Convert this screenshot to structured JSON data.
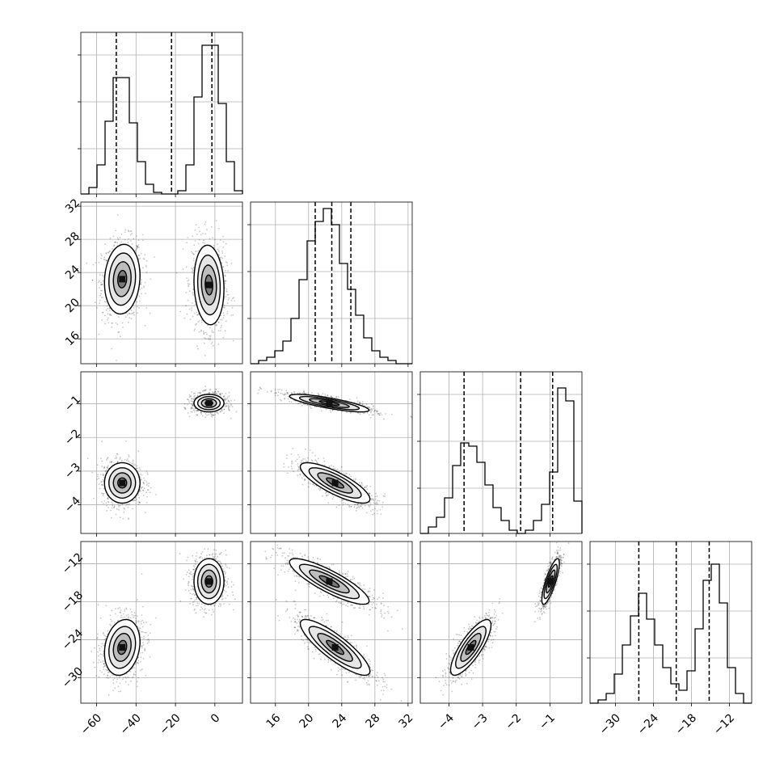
{
  "chart_data": {
    "type": "corner",
    "parameters": [
      {
        "range": [
          -68,
          14
        ],
        "ticks": [
          -60,
          -40,
          -20,
          0
        ],
        "tick_labels": [
          "−60",
          "−40",
          "−20",
          "0"
        ],
        "quantiles": [
          -50,
          -22,
          -1.5
        ]
      },
      {
        "range": [
          13,
          32.5
        ],
        "ticks": [
          16,
          20,
          24,
          28,
          32
        ],
        "tick_labels": [
          "16",
          "20",
          "24",
          "28",
          "32"
        ],
        "quantiles": [
          20.8,
          22.8,
          25.1
        ]
      },
      {
        "range": [
          -4.85,
          -0.05
        ],
        "ticks": [
          -4,
          -3,
          -2,
          -1
        ],
        "tick_labels": [
          "−4",
          "−3",
          "−2",
          "−1"
        ],
        "quantiles": [
          -3.55,
          -1.87,
          -0.92
        ]
      },
      {
        "range": [
          -34,
          -8.5
        ],
        "ticks": [
          -30,
          -24,
          -18,
          -12
        ],
        "tick_labels": [
          "−30",
          "−24",
          "−18",
          "−12"
        ],
        "quantiles": [
          -26.3,
          -20.4,
          -15.2
        ]
      }
    ],
    "histograms": [
      {
        "edges_range": [
          -68,
          14
        ],
        "counts": [
          0,
          0.04,
          0.18,
          0.45,
          0.72,
          0.72,
          0.44,
          0.2,
          0.06,
          0.01,
          0,
          0,
          0.02,
          0.18,
          0.6,
          0.92,
          0.92,
          0.56,
          0.2,
          0.02
        ],
        "ylim": [
          0,
          1.0
        ]
      },
      {
        "edges_range": [
          13,
          32.5
        ],
        "counts": [
          0,
          0.02,
          0.04,
          0.08,
          0.14,
          0.28,
          0.52,
          0.76,
          0.88,
          0.96,
          0.86,
          0.62,
          0.46,
          0.3,
          0.16,
          0.08,
          0.04,
          0.02,
          0,
          0
        ],
        "ylim": [
          0,
          1.0
        ]
      },
      {
        "edges_range": [
          -4.85,
          -0.05
        ],
        "counts": [
          0,
          0.04,
          0.1,
          0.22,
          0.42,
          0.56,
          0.54,
          0.44,
          0.3,
          0.16,
          0.08,
          0.02,
          0,
          0.02,
          0.08,
          0.18,
          0.38,
          0.9,
          0.82,
          0.2
        ],
        "ylim": [
          0,
          1.0
        ]
      },
      {
        "edges_range": [
          -34,
          -8.5
        ],
        "counts": [
          0,
          0.02,
          0.06,
          0.18,
          0.36,
          0.54,
          0.68,
          0.52,
          0.36,
          0.22,
          0.12,
          0.08,
          0.2,
          0.46,
          0.76,
          0.86,
          0.62,
          0.22,
          0.06,
          0
        ],
        "ylim": [
          0,
          1.0
        ]
      }
    ],
    "clusters": [
      {
        "center": [
          -47,
          23.2,
          -3.35,
          -25.2
        ],
        "sd": [
          4.5,
          2.1,
          0.3,
          2.2
        ],
        "corr": {
          "0-1": 0.1,
          "0-2": 0.0,
          "0-3": 0.2,
          "1-2": -0.8,
          "1-3": -0.85,
          "2-3": 0.8
        }
      },
      {
        "center": [
          -3,
          22.5,
          -0.98,
          -14.8
        ],
        "sd": [
          3.8,
          2.4,
          0.13,
          1.8
        ],
        "corr": {
          "0-1": -0.1,
          "0-2": 0.0,
          "0-3": 0.0,
          "1-2": -0.8,
          "1-3": -0.85,
          "2-3": 0.8
        }
      }
    ]
  }
}
